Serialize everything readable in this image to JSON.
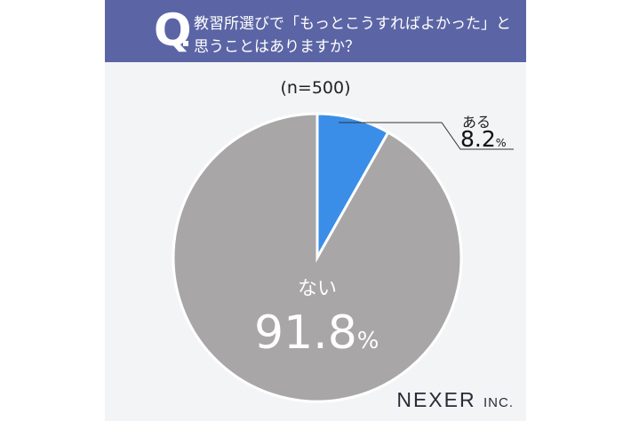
{
  "header": {
    "q_mark": "Q",
    "line1": "教習所選びで「もっとこうすればよかった」と",
    "line2": "思うことはありますか？"
  },
  "sample": "(n=500)",
  "logo": {
    "name": "NEXER",
    "suffix": "INC."
  },
  "colors": {
    "header": "#5b65a5",
    "yes": "#3a8ee8",
    "no": "#a8a6a7",
    "background": "#f3f4f6"
  },
  "chart_data": {
    "type": "pie",
    "title": "教習所選びで「もっとこうすればよかった」と思うことはありますか？",
    "slices": [
      {
        "label": "ある",
        "value": 8.2,
        "display": "8.2",
        "unit": "%",
        "color": "#3a8ee8"
      },
      {
        "label": "ない",
        "value": 91.8,
        "display": "91.8",
        "unit": "%",
        "color": "#a8a6a7"
      }
    ]
  }
}
